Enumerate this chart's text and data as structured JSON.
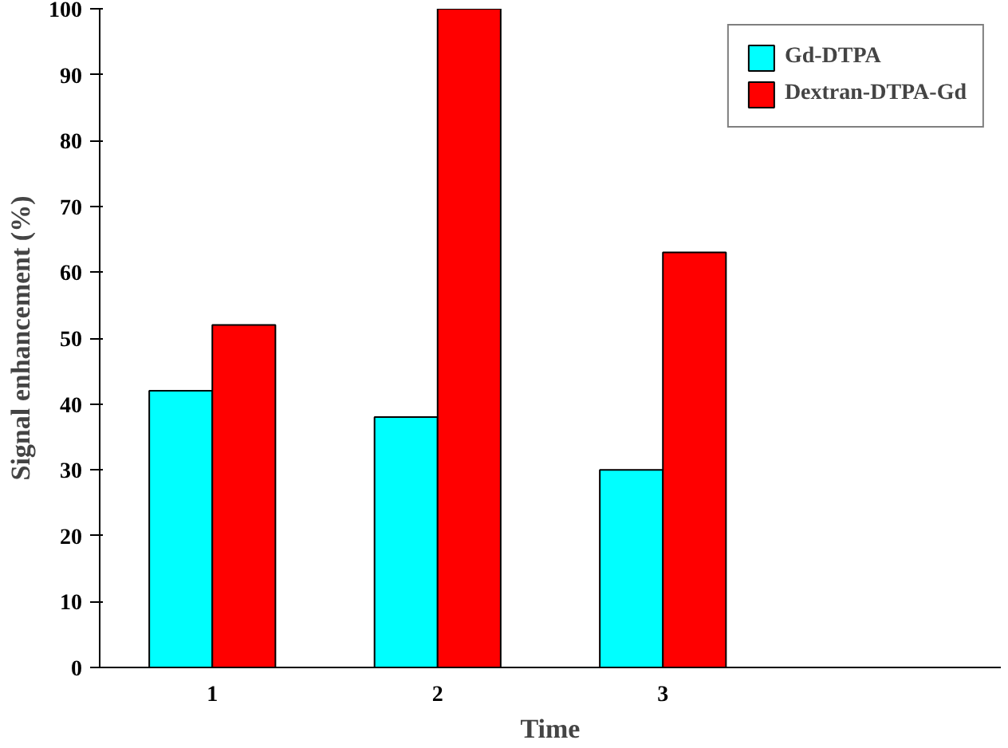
{
  "chart_data": {
    "type": "bar",
    "xlabel": "Time",
    "ylabel": "Signal enhancement (%)",
    "categories": [
      "1",
      "2",
      "3",
      null
    ],
    "series": [
      {
        "name": "Gd-DTPA",
        "color": "#00ffff",
        "values": [
          42,
          38,
          30,
          null
        ]
      },
      {
        "name": "Dextran-DTPA-Gd",
        "color": "#ff0000",
        "values": [
          52,
          100,
          63,
          null
        ]
      }
    ],
    "ylim": [
      0,
      100
    ],
    "yticks": [
      0,
      10,
      20,
      30,
      40,
      50,
      60,
      70,
      80,
      90,
      100
    ],
    "grid": false,
    "legend": "top right"
  }
}
